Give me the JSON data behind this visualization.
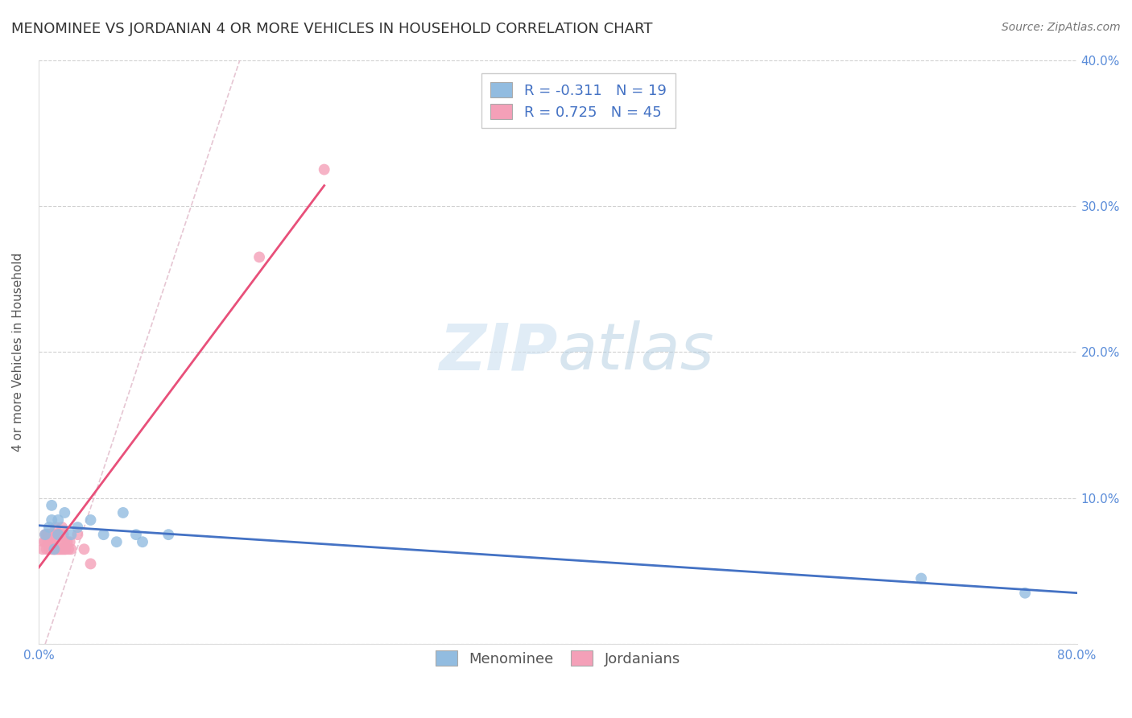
{
  "title": "MENOMINEE VS JORDANIAN 4 OR MORE VEHICLES IN HOUSEHOLD CORRELATION CHART",
  "source": "Source: ZipAtlas.com",
  "ylabel": "4 or more Vehicles in Household",
  "xlim": [
    0.0,
    0.8
  ],
  "ylim": [
    0.0,
    0.4
  ],
  "xticks": [
    0.0,
    0.2,
    0.4,
    0.6,
    0.8
  ],
  "yticks": [
    0.0,
    0.1,
    0.2,
    0.3,
    0.4
  ],
  "xtick_labels_show": [
    "0.0%",
    "80.0%"
  ],
  "xtick_labels_pos": [
    0.0,
    0.8
  ],
  "right_ytick_labels": [
    "",
    "10.0%",
    "20.0%",
    "30.0%",
    "40.0%"
  ],
  "menominee_R": -0.311,
  "menominee_N": 19,
  "jordanian_R": 0.725,
  "jordanian_N": 45,
  "menominee_color": "#92bce0",
  "jordanian_color": "#f4a0b8",
  "menominee_line_color": "#4472c4",
  "jordanian_line_color": "#e8507a",
  "diagonal_line_color": "#e0b8c8",
  "watermark_zip": "ZIP",
  "watermark_atlas": "atlas",
  "watermark_color_zip": "#c8dff0",
  "watermark_color_atlas": "#b8cce0",
  "menominee_x": [
    0.005,
    0.008,
    0.01,
    0.01,
    0.012,
    0.015,
    0.015,
    0.02,
    0.025,
    0.03,
    0.04,
    0.05,
    0.06,
    0.065,
    0.075,
    0.08,
    0.1,
    0.68,
    0.76
  ],
  "menominee_y": [
    0.075,
    0.08,
    0.085,
    0.095,
    0.065,
    0.075,
    0.085,
    0.09,
    0.075,
    0.08,
    0.085,
    0.075,
    0.07,
    0.09,
    0.075,
    0.07,
    0.075,
    0.045,
    0.035
  ],
  "jordanian_x": [
    0.003,
    0.004,
    0.005,
    0.005,
    0.006,
    0.006,
    0.007,
    0.007,
    0.008,
    0.008,
    0.009,
    0.009,
    0.01,
    0.01,
    0.01,
    0.011,
    0.011,
    0.012,
    0.012,
    0.013,
    0.013,
    0.014,
    0.014,
    0.015,
    0.015,
    0.016,
    0.016,
    0.017,
    0.017,
    0.018,
    0.018,
    0.019,
    0.019,
    0.02,
    0.02,
    0.021,
    0.022,
    0.023,
    0.024,
    0.025,
    0.03,
    0.035,
    0.04,
    0.17,
    0.22
  ],
  "jordanian_y": [
    0.065,
    0.07,
    0.07,
    0.075,
    0.065,
    0.075,
    0.07,
    0.075,
    0.065,
    0.075,
    0.07,
    0.075,
    0.065,
    0.07,
    0.075,
    0.065,
    0.075,
    0.065,
    0.075,
    0.065,
    0.08,
    0.065,
    0.075,
    0.065,
    0.075,
    0.065,
    0.07,
    0.065,
    0.075,
    0.065,
    0.08,
    0.065,
    0.075,
    0.065,
    0.07,
    0.065,
    0.07,
    0.065,
    0.07,
    0.065,
    0.075,
    0.065,
    0.055,
    0.265,
    0.325
  ],
  "background_color": "#ffffff",
  "grid_color": "#cccccc",
  "title_fontsize": 13,
  "axis_label_fontsize": 11,
  "tick_fontsize": 11,
  "legend_fontsize": 13
}
